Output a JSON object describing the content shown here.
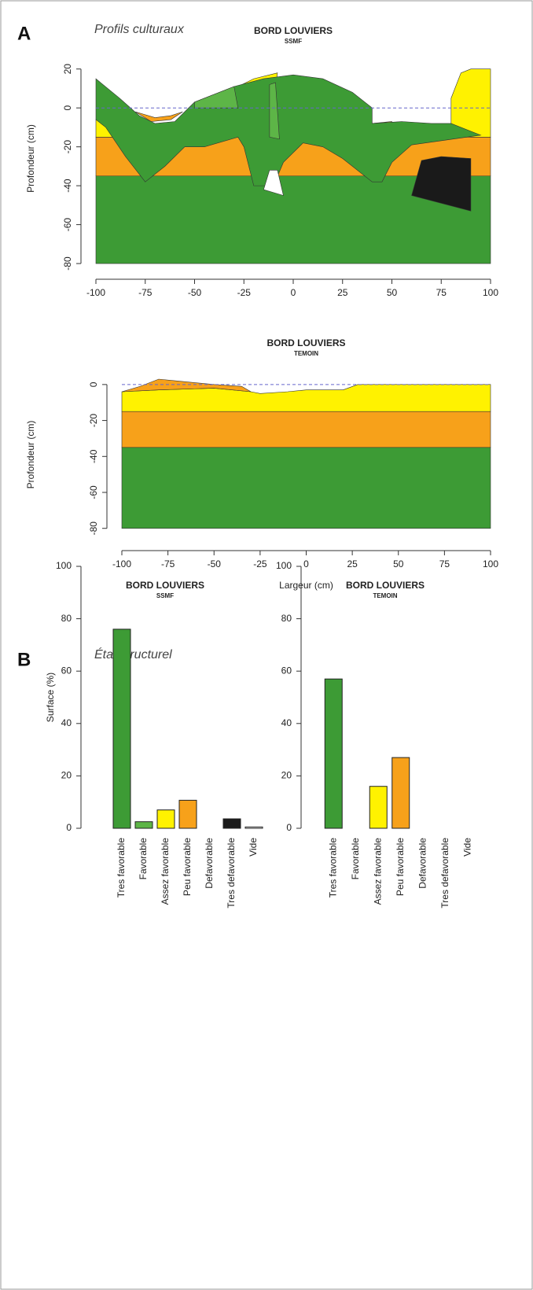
{
  "panels": [
    {
      "letter": "A",
      "caption": "Profils culturaux"
    },
    {
      "letter": "B",
      "caption": "État structurel"
    }
  ],
  "chart_data": [
    {
      "type": "profile",
      "title": "BORD LOUVIERS",
      "subtitle": "SSMF",
      "y_label": "Profondeur (cm)",
      "xlim": [
        -100,
        100
      ],
      "ylim": [
        -82,
        30
      ],
      "xticks": [
        -100,
        -75,
        -50,
        -25,
        0,
        25,
        50,
        75,
        100
      ],
      "yticks": [
        20,
        0,
        -20,
        -40,
        -60,
        -80
      ],
      "reference_line": 0,
      "shapes": [
        {
          "color": "#f7a11a",
          "x": [
            -100,
            100,
            100,
            -100
          ],
          "y": [
            -15,
            -15,
            -35,
            -35
          ]
        },
        {
          "color": "#3d9b35",
          "x": [
            -100,
            100,
            100,
            -100
          ],
          "y": [
            -35,
            -35,
            -80,
            -80
          ]
        },
        {
          "color": "#fff200",
          "x": [
            -100,
            -92,
            -88,
            -100
          ],
          "y": [
            -6,
            -9,
            -15,
            -15
          ]
        },
        {
          "color": "#fff200",
          "x": [
            80,
            85,
            90,
            100,
            100,
            90,
            80
          ],
          "y": [
            5,
            18,
            20,
            20,
            -15,
            -15,
            -13
          ]
        },
        {
          "color": "#fff200",
          "x": [
            -28,
            -20,
            -8,
            -10,
            -5,
            -15,
            -25
          ],
          "y": [
            11,
            15,
            18,
            0,
            -15,
            -15,
            -5
          ]
        },
        {
          "color": "#fff200",
          "x": [
            40,
            50,
            50,
            40
          ],
          "y": [
            -8,
            -7,
            -12,
            -12
          ]
        },
        {
          "color": "#3d9b35",
          "x": [
            -100,
            -88,
            -78,
            -70,
            -60,
            -50,
            -30,
            -15,
            0,
            15,
            30,
            40,
            40,
            55,
            70,
            80,
            95,
            60,
            50,
            45,
            40,
            25,
            15,
            5,
            -5,
            -10,
            -20,
            -25,
            -28,
            -45,
            -55,
            -65,
            -75,
            -85,
            -95,
            -100
          ],
          "y": [
            15,
            5,
            -4,
            -8,
            -7,
            3,
            11,
            15,
            17,
            15,
            8,
            0,
            -8,
            -7,
            -8,
            -8,
            -14,
            -19,
            -28,
            -38,
            -38,
            -26,
            -20,
            -18,
            -28,
            -40,
            -40,
            -20,
            -15,
            -20,
            -20,
            -30,
            -38,
            -25,
            -10,
            -6
          ]
        },
        {
          "color": "#f7a11a",
          "x": [
            -80,
            -72,
            -62,
            -56,
            -62,
            -70
          ],
          "y": [
            -2,
            -7,
            -6,
            -2,
            -4,
            -5
          ]
        },
        {
          "color": "#5db547",
          "x": [
            -50,
            -30,
            -28,
            -50
          ],
          "y": [
            3,
            11,
            0,
            0
          ]
        },
        {
          "color": "#5db547",
          "x": [
            -12,
            -9,
            -7,
            -12
          ],
          "y": [
            12,
            13,
            -16,
            -15
          ]
        },
        {
          "color": "#ffffff",
          "x": [
            -15,
            -12,
            -8,
            -5
          ],
          "y": [
            -42,
            -32,
            -32,
            -45
          ]
        },
        {
          "color": "#1a1a1a",
          "x": [
            60,
            65,
            75,
            90,
            90
          ],
          "y": [
            -45,
            -27,
            -25,
            -26,
            -53
          ]
        }
      ]
    },
    {
      "type": "profile",
      "title": "BORD LOUVIERS",
      "subtitle": "TEMOIN",
      "y_label": "Profondeur (cm)",
      "x_label": "Largeur (cm)",
      "xlim": [
        -100,
        100
      ],
      "ylim": [
        -88,
        10
      ],
      "xticks": [
        -100,
        -75,
        -50,
        -25,
        0,
        25,
        50,
        75,
        100
      ],
      "yticks": [
        0,
        -20,
        -40,
        -60,
        -80
      ],
      "reference_line": 0,
      "shapes": [
        {
          "color": "#f7a11a",
          "x": [
            -100,
            100,
            100,
            -100
          ],
          "y": [
            -15,
            -15,
            -35,
            -35
          ]
        },
        {
          "color": "#3d9b35",
          "x": [
            -100,
            100,
            100,
            -100
          ],
          "y": [
            -35,
            -35,
            -80,
            -80
          ]
        },
        {
          "color": "#fff200",
          "x": [
            -100,
            -80,
            -50,
            -30,
            -25,
            -10,
            0,
            20,
            28,
            100,
            100,
            -100
          ],
          "y": [
            -4,
            -3,
            -2,
            -4,
            -5,
            -4,
            -3,
            -3,
            0,
            0,
            -15,
            -15
          ]
        },
        {
          "color": "#f7a11a",
          "x": [
            -100,
            -90,
            -80,
            -70,
            -50,
            -35,
            -30,
            -50,
            -80
          ],
          "y": [
            -4,
            -1,
            3,
            2,
            0,
            -1,
            -4,
            -2,
            -3
          ]
        }
      ]
    },
    {
      "type": "bar",
      "title": "BORD LOUVIERS",
      "subtitle": "SSMF",
      "y_label": "Surface (%)",
      "categories": [
        "Tres favorable",
        "Favorable",
        "Assez favorable",
        "Peu favorable",
        "Defavorable",
        "Tres defavorable",
        "Vide"
      ],
      "values": [
        76,
        2.5,
        7,
        10.7,
        0,
        3.6,
        0.5
      ],
      "colors": [
        "#3d9b35",
        "#5db547",
        "#fff200",
        "#f7a11a",
        "#e63b2e",
        "#1a1a1a",
        "#ffffff"
      ],
      "ylim": [
        0,
        100
      ],
      "yticks": [
        0,
        20,
        40,
        60,
        80,
        100
      ]
    },
    {
      "type": "bar",
      "title": "BORD LOUVIERS",
      "subtitle": "TEMOIN",
      "categories": [
        "Tres favorable",
        "Favorable",
        "Assez favorable",
        "Peu favorable",
        "Defavorable",
        "Tres defavorable",
        "Vide"
      ],
      "values": [
        57,
        0,
        16,
        27,
        0,
        0,
        0
      ],
      "colors": [
        "#3d9b35",
        "#5db547",
        "#fff200",
        "#f7a11a",
        "#e63b2e",
        "#1a1a1a",
        "#ffffff"
      ],
      "ylim": [
        0,
        100
      ],
      "yticks": [
        0,
        20,
        40,
        60,
        80,
        100
      ]
    }
  ]
}
